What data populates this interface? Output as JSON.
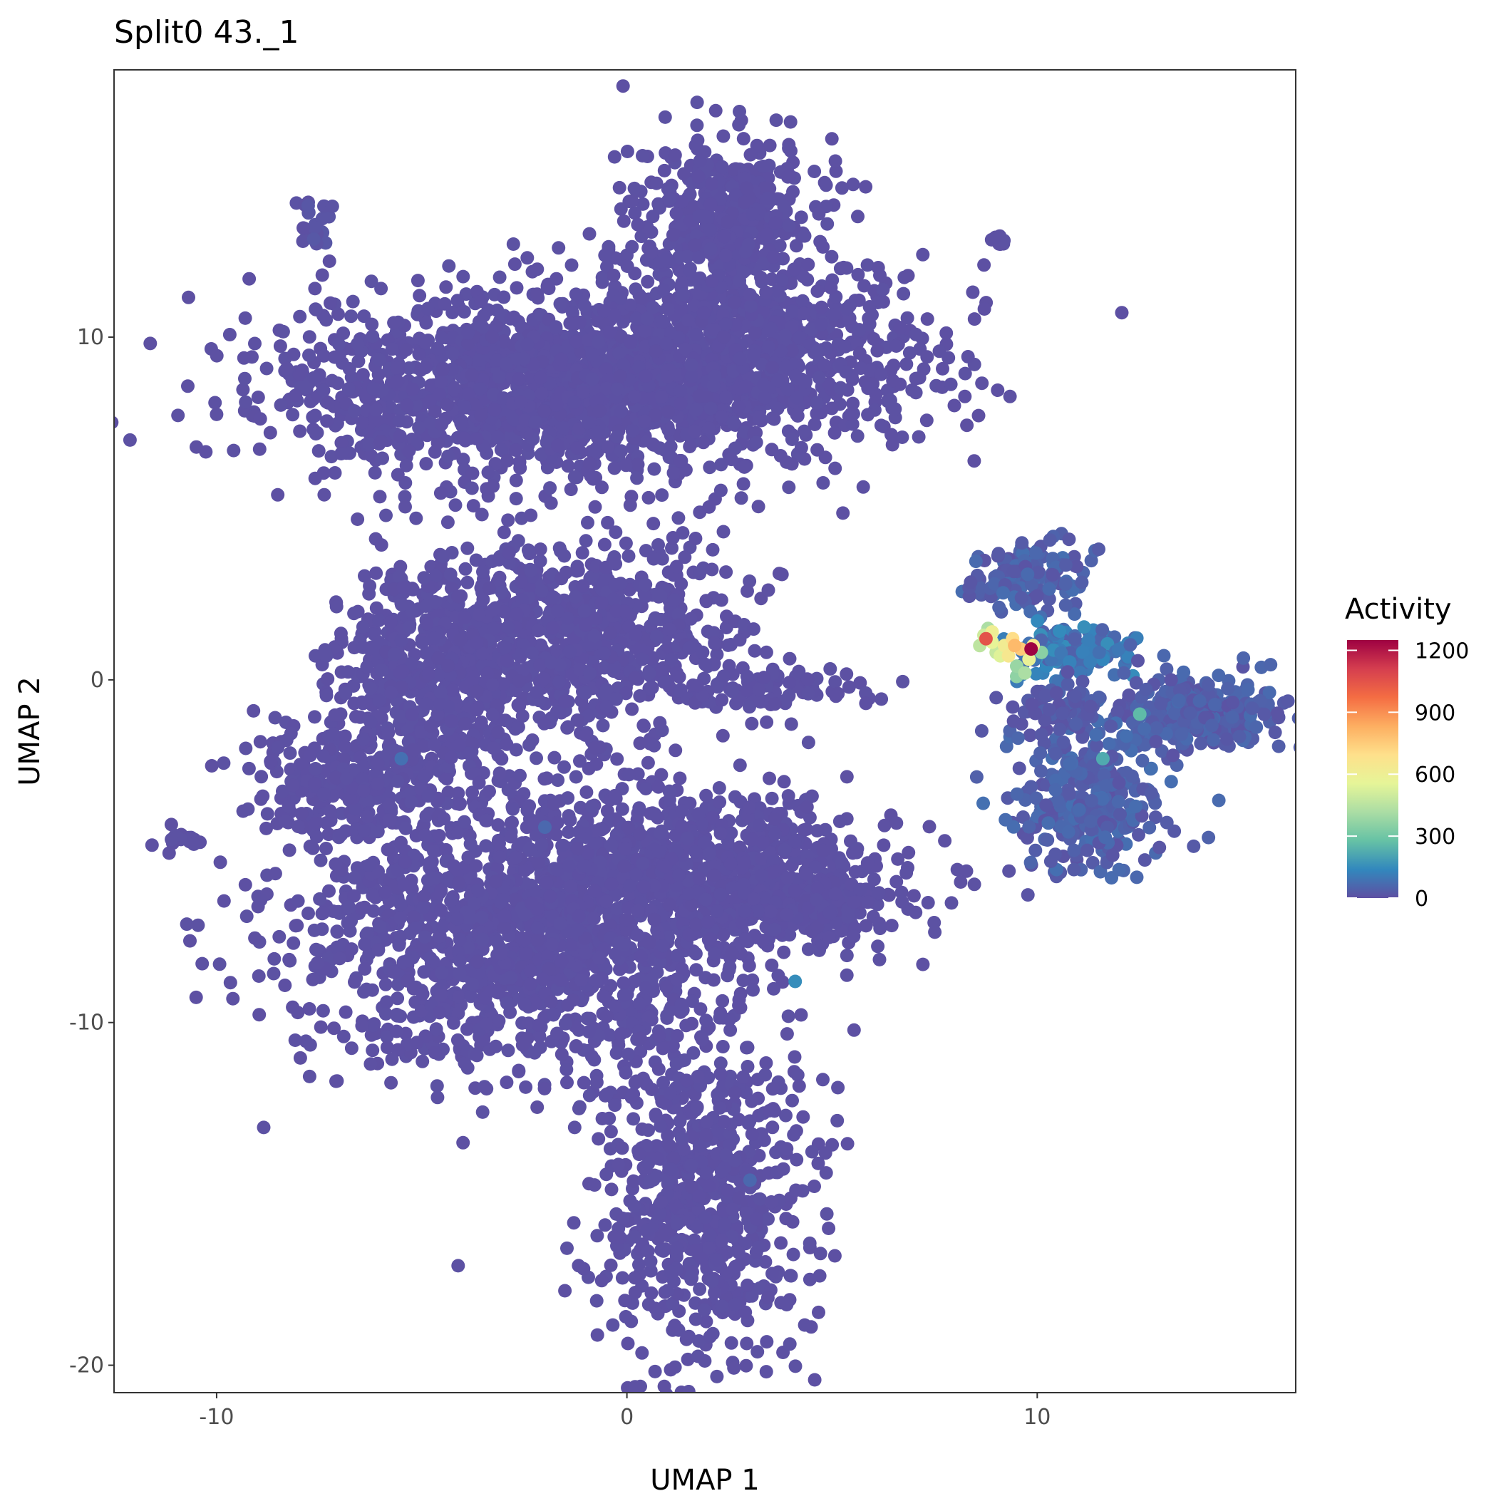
{
  "chart_data": {
    "type": "scatter",
    "title": "Split0 43._1",
    "xlabel": "UMAP 1",
    "ylabel": "UMAP 2",
    "xlim": [
      -12.5,
      16.3
    ],
    "ylim": [
      -20.8,
      17.8
    ],
    "x_ticks": [
      {
        "value": -10,
        "label": "-10"
      },
      {
        "value": 0,
        "label": "0"
      },
      {
        "value": 10,
        "label": "10"
      }
    ],
    "y_ticks": [
      {
        "value": 10,
        "label": "10"
      },
      {
        "value": 0,
        "label": "0"
      },
      {
        "value": -10,
        "label": "-10"
      },
      {
        "value": -20,
        "label": "-20"
      }
    ],
    "grid": false,
    "legend": {
      "title": "Activity",
      "placement": "right",
      "range": [
        0,
        1250
      ],
      "ticks": [
        {
          "value": 0,
          "label": "0"
        },
        {
          "value": 300,
          "label": "300"
        },
        {
          "value": 600,
          "label": "600"
        },
        {
          "value": 900,
          "label": "900"
        },
        {
          "value": 1200,
          "label": "1200"
        }
      ],
      "colormap": "Spectral (reversed)",
      "color_stops": [
        "#5e4fa2",
        "#3288bd",
        "#66c2a5",
        "#abdda4",
        "#e6f598",
        "#fee08b",
        "#fdae61",
        "#f46d43",
        "#d53e4f",
        "#9e0142"
      ]
    },
    "point_color_zero": "#5e4fa2",
    "clusters": [
      {
        "x": -2.5,
        "y": 8.5,
        "sx": 3.2,
        "sy": 1.3,
        "n": 1400,
        "base": 2,
        "spread": 5
      },
      {
        "x": 2.5,
        "y": 9.5,
        "sx": 2.5,
        "sy": 1.5,
        "n": 900,
        "base": 2,
        "spread": 5
      },
      {
        "x": 2.5,
        "y": 13.5,
        "sx": 1.1,
        "sy": 1.2,
        "n": 400,
        "base": 2,
        "spread": 5
      },
      {
        "x": -1.8,
        "y": 1.2,
        "sx": 2.2,
        "sy": 1.4,
        "n": 900,
        "base": 2,
        "spread": 5
      },
      {
        "x": -5.0,
        "y": -0.3,
        "sx": 1.2,
        "sy": 1.6,
        "n": 350,
        "base": 2,
        "spread": 5
      },
      {
        "x": -6.5,
        "y": -3.0,
        "sx": 1.4,
        "sy": 0.8,
        "n": 300,
        "base": 2,
        "spread": 5
      },
      {
        "x": -2.5,
        "y": -7.5,
        "sx": 2.8,
        "sy": 2.0,
        "n": 1400,
        "base": 2,
        "spread": 5
      },
      {
        "x": 2.0,
        "y": -5.5,
        "sx": 2.3,
        "sy": 1.1,
        "n": 700,
        "base": 2,
        "spread": 5
      },
      {
        "x": 4.5,
        "y": -6.5,
        "sx": 1.1,
        "sy": 0.5,
        "n": 200,
        "base": 2,
        "spread": 5
      },
      {
        "x": 1.8,
        "y": -15.0,
        "sx": 1.2,
        "sy": 2.4,
        "n": 700,
        "base": 2,
        "spread": 5
      },
      {
        "x": 3.5,
        "y": -0.3,
        "sx": 1.2,
        "sy": 0.3,
        "n": 80,
        "base": 2,
        "spread": 5
      },
      {
        "x": 9.8,
        "y": 3.0,
        "sx": 0.7,
        "sy": 0.5,
        "n": 140,
        "base": 10,
        "spread": 70
      },
      {
        "x": 10.8,
        "y": 0.8,
        "sx": 0.8,
        "sy": 0.35,
        "n": 160,
        "base": 40,
        "spread": 120
      },
      {
        "x": 13.8,
        "y": -1.0,
        "sx": 1.2,
        "sy": 0.55,
        "n": 300,
        "base": 10,
        "spread": 60
      },
      {
        "x": 11.2,
        "y": -3.6,
        "sx": 0.9,
        "sy": 1.0,
        "n": 300,
        "base": 10,
        "spread": 70
      },
      {
        "x": 10.5,
        "y": -0.8,
        "sx": 0.6,
        "sy": 0.4,
        "n": 60,
        "base": 5,
        "spread": 40
      },
      {
        "x": -7.6,
        "y": 13.3,
        "sx": 0.25,
        "sy": 0.4,
        "n": 25,
        "base": 3,
        "spread": 20
      },
      {
        "x": -10.8,
        "y": -4.7,
        "sx": 0.3,
        "sy": 0.15,
        "n": 15,
        "base": 2,
        "spread": 5
      },
      {
        "x": 9.1,
        "y": 12.8,
        "sx": 0.1,
        "sy": 0.1,
        "n": 8,
        "base": 2,
        "spread": 5
      }
    ],
    "highlighted_points": [
      {
        "x": 8.7,
        "y": 1.3,
        "value": 500
      },
      {
        "x": 8.9,
        "y": 1.1,
        "value": 560
      },
      {
        "x": 8.8,
        "y": 1.5,
        "value": 420
      },
      {
        "x": 9.2,
        "y": 1.0,
        "value": 620
      },
      {
        "x": 9.0,
        "y": 0.8,
        "value": 480
      },
      {
        "x": 9.4,
        "y": 1.2,
        "value": 700
      },
      {
        "x": 9.6,
        "y": 0.9,
        "value": 760
      },
      {
        "x": 9.3,
        "y": 0.7,
        "value": 650
      },
      {
        "x": 9.5,
        "y": 0.4,
        "value": 380
      },
      {
        "x": 9.7,
        "y": 0.2,
        "value": 420
      },
      {
        "x": 9.9,
        "y": 1.0,
        "value": 640
      },
      {
        "x": 10.1,
        "y": 0.8,
        "value": 350
      },
      {
        "x": 9.5,
        "y": 0.1,
        "value": 360
      },
      {
        "x": 8.6,
        "y": 1.0,
        "value": 460
      },
      {
        "x": 8.9,
        "y": 1.4,
        "value": 600
      },
      {
        "x": 9.8,
        "y": 0.6,
        "value": 580
      },
      {
        "x": 9.1,
        "y": 0.7,
        "value": 540
      },
      {
        "x": 8.75,
        "y": 1.2,
        "value": 1050
      },
      {
        "x": 9.45,
        "y": 1.0,
        "value": 800
      },
      {
        "x": 9.85,
        "y": 0.9,
        "value": 1250
      },
      {
        "x": 12.5,
        "y": -1.0,
        "value": 260
      },
      {
        "x": 11.6,
        "y": -2.3,
        "value": 220
      },
      {
        "x": 4.1,
        "y": -8.8,
        "value": 150
      },
      {
        "x": -5.5,
        "y": -2.3,
        "value": 80
      },
      {
        "x": -2.0,
        "y": -4.3,
        "value": 60
      },
      {
        "x": 3.0,
        "y": -14.6,
        "value": 60
      }
    ]
  }
}
